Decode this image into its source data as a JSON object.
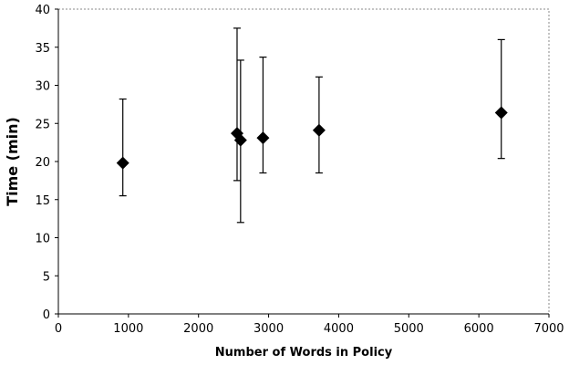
{
  "chart_data": {
    "type": "scatter",
    "title": "",
    "xlabel": "Number of Words in Policy",
    "ylabel": "Time (min)",
    "xlim": [
      0,
      7000
    ],
    "ylim": [
      0,
      40
    ],
    "xticks": [
      0,
      1000,
      2000,
      3000,
      4000,
      5000,
      6000,
      7000
    ],
    "yticks": [
      0,
      5,
      10,
      15,
      20,
      25,
      30,
      35,
      40
    ],
    "grid": false,
    "legend": "none",
    "marker": "diamond",
    "marker_color": "#000000",
    "points": [
      {
        "x": 920,
        "y": 19.8,
        "err_low": 15.5,
        "err_high": 28.2
      },
      {
        "x": 2550,
        "y": 23.7,
        "err_low": 17.5,
        "err_high": 37.5
      },
      {
        "x": 2600,
        "y": 22.8,
        "err_low": 12.0,
        "err_high": 33.3
      },
      {
        "x": 2920,
        "y": 23.1,
        "err_low": 18.5,
        "err_high": 33.7
      },
      {
        "x": 3720,
        "y": 24.1,
        "err_low": 18.5,
        "err_high": 31.1
      },
      {
        "x": 6320,
        "y": 26.4,
        "err_low": 20.4,
        "err_high": 36.0
      }
    ]
  }
}
